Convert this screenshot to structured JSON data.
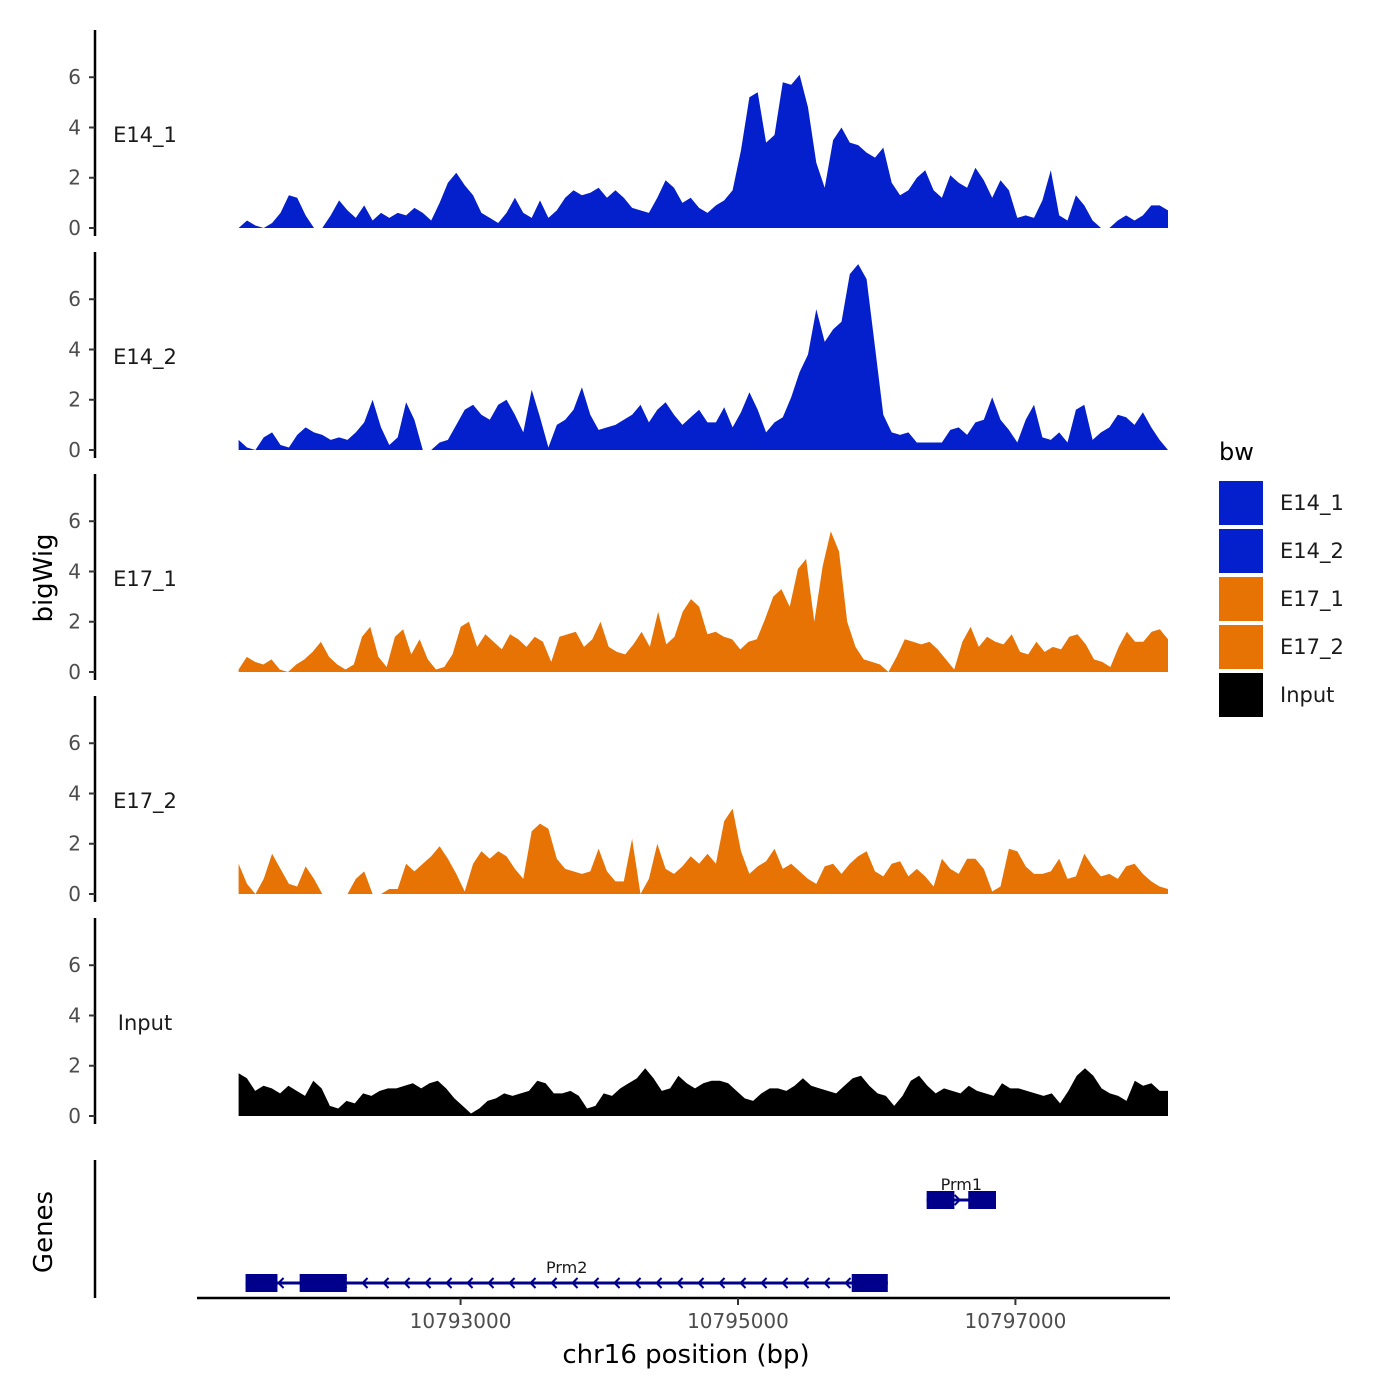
{
  "chart_data": {
    "type": "area",
    "title": "",
    "ylabel": "bigWig",
    "xlabel": "chr16 position (bp)",
    "genes_label": "Genes",
    "chromosome": "chr16",
    "xlim": [
      10791100,
      10798100
    ],
    "x_ticks": [
      10793000,
      10795000,
      10797000
    ],
    "x_tick_labels": [
      "10793000",
      "10795000",
      "10797000"
    ],
    "ylim": [
      0,
      7.8
    ],
    "y_ticks": [
      0,
      2,
      4,
      6
    ],
    "y_tick_labels": [
      "0",
      "2",
      "4",
      "6"
    ],
    "legend": {
      "title": "bw",
      "position": "right",
      "entries": [
        {
          "label": "E14_1",
          "color": "#0420CC"
        },
        {
          "label": "E14_2",
          "color": "#0420CC"
        },
        {
          "label": "E17_1",
          "color": "#E87305"
        },
        {
          "label": "E17_2",
          "color": "#E87305"
        },
        {
          "label": "Input",
          "color": "#000000"
        }
      ]
    },
    "x_range": [
      10791400,
      10798100
    ],
    "series": [
      {
        "name": "E14_1",
        "label": "E14_1",
        "color": "#0420CC",
        "values": [
          0.0,
          0.3,
          0.1,
          0.0,
          0.2,
          0.6,
          1.3,
          1.2,
          0.5,
          0.0,
          0.0,
          0.5,
          1.1,
          0.7,
          0.4,
          0.9,
          0.3,
          0.6,
          0.4,
          0.6,
          0.5,
          0.8,
          0.6,
          0.3,
          1.0,
          1.8,
          2.2,
          1.7,
          1.3,
          0.6,
          0.4,
          0.2,
          0.6,
          1.2,
          0.6,
          0.4,
          1.1,
          0.4,
          0.7,
          1.2,
          1.5,
          1.3,
          1.4,
          1.6,
          1.2,
          1.5,
          1.2,
          0.8,
          0.7,
          0.6,
          1.2,
          1.9,
          1.6,
          1.0,
          1.2,
          0.8,
          0.6,
          0.9,
          1.1,
          1.5,
          3.1,
          5.2,
          5.4,
          3.4,
          3.7,
          5.8,
          5.7,
          6.1,
          4.8,
          2.6,
          1.6,
          3.5,
          4.0,
          3.4,
          3.3,
          3.0,
          2.8,
          3.2,
          1.8,
          1.3,
          1.5,
          2.0,
          2.3,
          1.5,
          1.2,
          2.1,
          1.8,
          1.6,
          2.4,
          1.9,
          1.2,
          1.9,
          1.5,
          0.4,
          0.5,
          0.4,
          1.1,
          2.3,
          0.5,
          0.3,
          1.3,
          0.9,
          0.3,
          0.0,
          0.0,
          0.3,
          0.5,
          0.3,
          0.5,
          0.9,
          0.9,
          0.7
        ]
      },
      {
        "name": "E14_2",
        "label": "E14_2",
        "color": "#0420CC",
        "values": [
          0.4,
          0.1,
          0.0,
          0.5,
          0.7,
          0.2,
          0.1,
          0.6,
          0.9,
          0.7,
          0.6,
          0.4,
          0.5,
          0.4,
          0.7,
          1.1,
          2.0,
          0.9,
          0.2,
          0.5,
          1.9,
          1.2,
          0.0,
          0.0,
          0.3,
          0.4,
          1.0,
          1.6,
          1.8,
          1.4,
          1.2,
          1.8,
          2.0,
          1.4,
          0.7,
          2.4,
          1.3,
          0.1,
          1.0,
          1.2,
          1.6,
          2.5,
          1.4,
          0.8,
          0.9,
          1.0,
          1.2,
          1.4,
          1.8,
          1.1,
          1.6,
          1.9,
          1.4,
          1.0,
          1.3,
          1.6,
          1.1,
          1.1,
          1.7,
          0.9,
          1.5,
          2.3,
          1.6,
          0.7,
          1.1,
          1.3,
          2.1,
          3.1,
          3.8,
          5.6,
          4.3,
          4.8,
          5.1,
          7.0,
          7.4,
          6.8,
          4.1,
          1.4,
          0.7,
          0.6,
          0.7,
          0.3,
          0.3,
          0.3,
          0.3,
          0.8,
          0.9,
          0.6,
          1.1,
          1.2,
          2.1,
          1.2,
          0.8,
          0.3,
          1.2,
          1.8,
          0.5,
          0.4,
          0.7,
          0.3,
          1.6,
          1.8,
          0.4,
          0.7,
          0.9,
          1.4,
          1.3,
          1.0,
          1.5,
          0.9,
          0.4,
          0.0
        ]
      },
      {
        "name": "E17_1",
        "label": "E17_1",
        "color": "#E87305",
        "values": [
          0.1,
          0.6,
          0.4,
          0.3,
          0.5,
          0.1,
          0.0,
          0.3,
          0.5,
          0.8,
          1.2,
          0.6,
          0.3,
          0.1,
          0.3,
          1.4,
          1.8,
          0.6,
          0.2,
          1.4,
          1.7,
          0.7,
          1.3,
          0.5,
          0.1,
          0.2,
          0.7,
          1.8,
          2.0,
          1.0,
          1.5,
          1.2,
          0.9,
          1.5,
          1.3,
          1.0,
          1.4,
          1.2,
          0.4,
          1.4,
          1.5,
          1.6,
          1.0,
          1.3,
          2.0,
          1.0,
          0.8,
          0.7,
          1.1,
          1.6,
          1.0,
          2.4,
          1.1,
          1.4,
          2.4,
          2.9,
          2.6,
          1.5,
          1.6,
          1.4,
          1.3,
          0.9,
          1.2,
          1.3,
          2.1,
          3.0,
          3.3,
          2.6,
          4.1,
          4.5,
          2.0,
          4.2,
          5.6,
          4.8,
          2.0,
          1.0,
          0.5,
          0.4,
          0.3,
          0.0,
          0.6,
          1.3,
          1.2,
          1.1,
          1.2,
          0.9,
          0.5,
          0.1,
          1.2,
          1.8,
          1.0,
          1.4,
          1.2,
          1.1,
          1.5,
          0.8,
          0.7,
          1.2,
          0.8,
          1.0,
          0.9,
          1.4,
          1.5,
          1.1,
          0.5,
          0.4,
          0.2,
          1.0,
          1.6,
          1.2,
          1.2,
          1.6,
          1.7,
          1.3
        ]
      },
      {
        "name": "E17_2",
        "label": "E17_2",
        "color": "#E87305",
        "values": [
          1.2,
          0.4,
          0.0,
          0.6,
          1.6,
          1.0,
          0.4,
          0.3,
          1.1,
          0.6,
          0.0,
          0.0,
          0.0,
          0.0,
          0.6,
          0.9,
          0.0,
          0.0,
          0.2,
          0.2,
          1.2,
          0.9,
          1.2,
          1.5,
          1.9,
          1.4,
          0.8,
          0.1,
          1.2,
          1.7,
          1.4,
          1.7,
          1.5,
          1.0,
          0.6,
          2.5,
          2.8,
          2.6,
          1.4,
          1.0,
          0.9,
          0.8,
          0.9,
          1.8,
          0.9,
          0.5,
          0.5,
          2.2,
          0.0,
          0.6,
          2.0,
          1.0,
          0.8,
          1.1,
          1.5,
          1.2,
          1.6,
          1.2,
          2.9,
          3.4,
          1.7,
          0.8,
          1.1,
          1.3,
          1.8,
          1.0,
          1.2,
          0.9,
          0.6,
          0.4,
          1.1,
          1.2,
          0.8,
          1.2,
          1.5,
          1.7,
          0.9,
          0.7,
          1.2,
          1.3,
          0.7,
          1.0,
          0.7,
          0.3,
          1.4,
          1.0,
          0.8,
          1.4,
          1.4,
          1.0,
          0.1,
          0.3,
          1.8,
          1.7,
          1.1,
          0.8,
          0.8,
          0.9,
          1.4,
          0.6,
          0.7,
          1.6,
          1.1,
          0.7,
          0.8,
          0.6,
          1.1,
          1.2,
          0.8,
          0.5,
          0.3,
          0.2
        ]
      },
      {
        "name": "Input",
        "label": "Input",
        "color": "#000000",
        "values": [
          1.7,
          1.5,
          1.0,
          1.2,
          1.1,
          0.9,
          1.2,
          1.0,
          0.8,
          1.4,
          1.1,
          0.4,
          0.3,
          0.6,
          0.5,
          0.9,
          0.8,
          1.0,
          1.1,
          1.1,
          1.2,
          1.3,
          1.1,
          1.3,
          1.4,
          1.1,
          0.7,
          0.4,
          0.1,
          0.3,
          0.6,
          0.7,
          0.9,
          0.8,
          0.9,
          1.0,
          1.4,
          1.3,
          0.9,
          0.9,
          1.0,
          0.8,
          0.3,
          0.4,
          0.9,
          0.8,
          1.1,
          1.3,
          1.5,
          1.9,
          1.5,
          1.0,
          1.1,
          1.6,
          1.3,
          1.1,
          1.3,
          1.4,
          1.4,
          1.3,
          1.0,
          0.7,
          0.6,
          0.9,
          1.1,
          1.1,
          1.0,
          1.2,
          1.5,
          1.2,
          1.1,
          1.0,
          0.9,
          1.2,
          1.5,
          1.6,
          1.2,
          0.9,
          0.8,
          0.4,
          0.8,
          1.4,
          1.6,
          1.2,
          0.9,
          1.1,
          1.0,
          0.9,
          1.2,
          1.0,
          0.9,
          0.8,
          1.3,
          1.1,
          1.1,
          1.0,
          0.9,
          0.8,
          0.9,
          0.5,
          1.0,
          1.6,
          1.9,
          1.6,
          1.1,
          0.9,
          0.8,
          0.6,
          1.4,
          1.2,
          1.3,
          1.0,
          1.0
        ]
      }
    ],
    "genes": [
      {
        "name": "Prm1",
        "strand": "+",
        "start": 10796360,
        "end": 10796860,
        "exons": [
          [
            10796360,
            10796560
          ],
          [
            10796660,
            10796860
          ]
        ]
      },
      {
        "name": "Prm2",
        "strand": "-",
        "start": 10791450,
        "end": 10796080,
        "exons": [
          [
            10791450,
            10791680
          ],
          [
            10791840,
            10792180
          ],
          [
            10795820,
            10796080
          ]
        ]
      }
    ],
    "gene_color": "#00008B"
  }
}
